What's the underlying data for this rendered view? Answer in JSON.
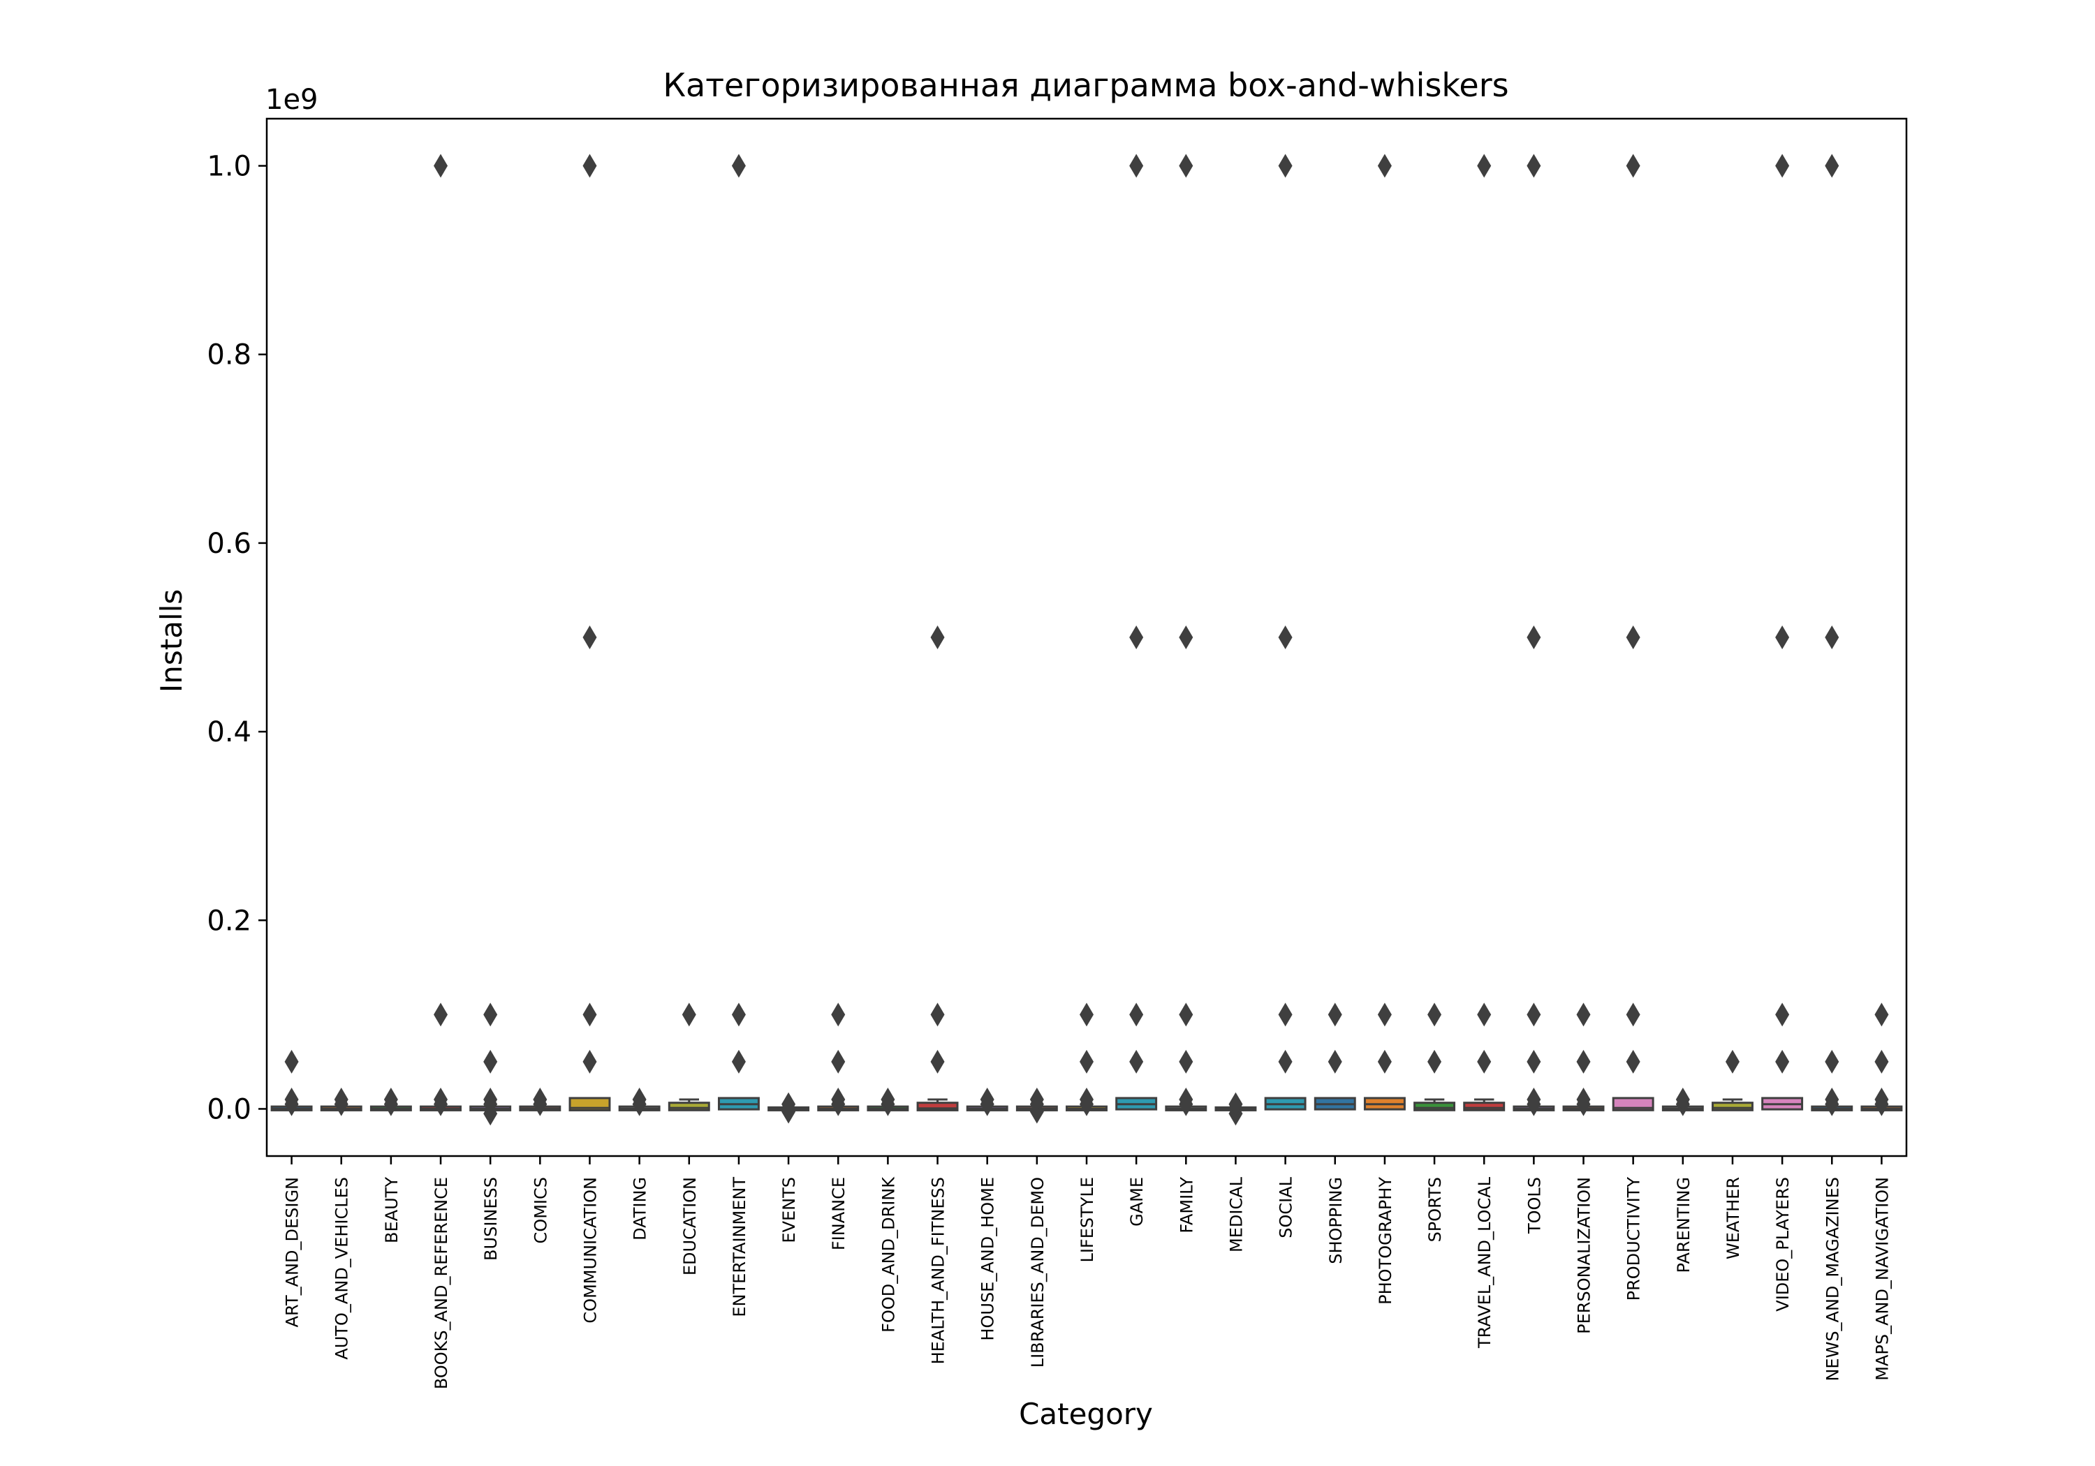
{
  "chart_data": {
    "type": "box",
    "title": "Категоризированная диаграмма box-and-whiskers",
    "xlabel": "Category",
    "ylabel": "Installs",
    "y_offset_label": "1e9",
    "ylim": [
      -50000000,
      1050000000
    ],
    "y_ticks": [
      0,
      200000000,
      400000000,
      600000000,
      800000000,
      1000000000
    ],
    "y_tick_labels": [
      "0.0",
      "0.2",
      "0.4",
      "0.6",
      "0.8",
      "1.0"
    ],
    "grid": false,
    "legend": "none",
    "categories": [
      {
        "name": "ART_AND_DESIGN",
        "q1": 10000,
        "median": 100000,
        "q3": 1000000,
        "whisker_low": 0,
        "whisker_high": 1000000,
        "color": "#3274a1",
        "outliers": [
          10000000,
          5000000,
          50000000
        ]
      },
      {
        "name": "AUTO_AND_VEHICLES",
        "q1": 1000,
        "median": 100000,
        "q3": 1000000,
        "whisker_low": 0,
        "whisker_high": 1000000,
        "color": "#e1812c",
        "outliers": [
          5000000,
          10000000
        ]
      },
      {
        "name": "BEAUTY",
        "q1": 10000,
        "median": 50000,
        "q3": 1000000,
        "whisker_low": 0,
        "whisker_high": 1000000,
        "color": "#3a923a",
        "outliers": [
          5000000,
          10000000
        ]
      },
      {
        "name": "BOOKS_AND_REFERENCE",
        "q1": 1000,
        "median": 10000,
        "q3": 1000000,
        "whisker_low": 0,
        "whisker_high": 1000000,
        "color": "#c03d3e",
        "outliers": [
          5000000,
          10000000,
          100000000,
          1000000000
        ]
      },
      {
        "name": "BUSINESS",
        "q1": 1000,
        "median": 10000,
        "q3": 1000000,
        "whisker_low": 0,
        "whisker_high": 1000000,
        "color": "#9372b2",
        "outliers": [
          -5000000,
          5000000,
          10000000,
          50000000,
          100000000
        ]
      },
      {
        "name": "COMICS",
        "q1": 10000,
        "median": 100000,
        "q3": 1000000,
        "whisker_low": 0,
        "whisker_high": 1000000,
        "color": "#845b53",
        "outliers": [
          5000000,
          10000000
        ]
      },
      {
        "name": "COMMUNICATION",
        "q1": 10000,
        "median": 1000000,
        "q3": 10000000,
        "whisker_low": 0,
        "whisker_high": 10000000,
        "color": "#c8a32b",
        "outliers": [
          50000000,
          100000000,
          500000000,
          1000000000
        ]
      },
      {
        "name": "DATING",
        "q1": 10000,
        "median": 100000,
        "q3": 1000000,
        "whisker_low": 0,
        "whisker_high": 1000000,
        "color": "#7f7f7f",
        "outliers": [
          5000000,
          10000000
        ]
      },
      {
        "name": "EDUCATION",
        "q1": 100000,
        "median": 1000000,
        "q3": 5000000,
        "whisker_low": 0,
        "whisker_high": 10000000,
        "color": "#a9aa35",
        "outliers": [
          100000000
        ]
      },
      {
        "name": "ENTERTAINMENT",
        "q1": 1000000,
        "median": 5000000,
        "q3": 10000000,
        "whisker_low": 0,
        "whisker_high": 10000000,
        "color": "#2e9ab0",
        "outliers": [
          50000000,
          100000000,
          1000000000
        ]
      },
      {
        "name": "EVENTS",
        "q1": 1000,
        "median": 10000,
        "q3": 100000,
        "whisker_low": 0,
        "whisker_high": 100000,
        "color": "#3274a1",
        "outliers": [
          -3000000,
          1000000,
          5000000
        ]
      },
      {
        "name": "FINANCE",
        "q1": 1000,
        "median": 100000,
        "q3": 1000000,
        "whisker_low": 0,
        "whisker_high": 1000000,
        "color": "#e1812c",
        "outliers": [
          5000000,
          10000000,
          50000000,
          100000000
        ]
      },
      {
        "name": "FOOD_AND_DRINK",
        "q1": 10000,
        "median": 100000,
        "q3": 1000000,
        "whisker_low": 0,
        "whisker_high": 1000000,
        "color": "#3a923a",
        "outliers": [
          5000000,
          10000000
        ]
      },
      {
        "name": "HEALTH_AND_FITNESS",
        "q1": 10000,
        "median": 500000,
        "q3": 5000000,
        "whisker_low": 0,
        "whisker_high": 10000000,
        "color": "#c03d3e",
        "outliers": [
          50000000,
          100000000,
          500000000
        ]
      },
      {
        "name": "HOUSE_AND_HOME",
        "q1": 10000,
        "median": 100000,
        "q3": 1000000,
        "whisker_low": 0,
        "whisker_high": 1000000,
        "color": "#9372b2",
        "outliers": [
          5000000,
          10000000
        ]
      },
      {
        "name": "LIBRARIES_AND_DEMO",
        "q1": 1000,
        "median": 10000,
        "q3": 1000000,
        "whisker_low": 0,
        "whisker_high": 1000000,
        "color": "#845b53",
        "outliers": [
          -3000000,
          5000000,
          10000000
        ]
      },
      {
        "name": "LIFESTYLE",
        "q1": 1000,
        "median": 10000,
        "q3": 1000000,
        "whisker_low": 0,
        "whisker_high": 1000000,
        "color": "#c8a32b",
        "outliers": [
          5000000,
          10000000,
          50000000,
          100000000
        ]
      },
      {
        "name": "GAME",
        "q1": 1000000,
        "median": 5000000,
        "q3": 10000000,
        "whisker_low": 0,
        "whisker_high": 10000000,
        "color": "#2e9ab0",
        "outliers": [
          50000000,
          100000000,
          500000000,
          1000000000
        ]
      },
      {
        "name": "FAMILY",
        "q1": 1000,
        "median": 100000,
        "q3": 1000000,
        "whisker_low": 0,
        "whisker_high": 1000000,
        "color": "#7f7f7f",
        "outliers": [
          5000000,
          10000000,
          50000000,
          100000000,
          500000000,
          1000000000
        ]
      },
      {
        "name": "MEDICAL",
        "q1": 100,
        "median": 1000,
        "q3": 100000,
        "whisker_low": 0,
        "whisker_high": 100000,
        "color": "#a9aa35",
        "outliers": [
          -5000000,
          1000000,
          5000000
        ]
      },
      {
        "name": "SOCIAL",
        "q1": 1000000,
        "median": 5000000,
        "q3": 10000000,
        "whisker_low": 0,
        "whisker_high": 10000000,
        "color": "#2e9ab0",
        "outliers": [
          50000000,
          100000000,
          500000000,
          1000000000
        ]
      },
      {
        "name": "SHOPPING",
        "q1": 1000000,
        "median": 5000000,
        "q3": 10000000,
        "whisker_low": 0,
        "whisker_high": 10000000,
        "color": "#3274a1",
        "outliers": [
          50000000,
          100000000
        ]
      },
      {
        "name": "PHOTOGRAPHY",
        "q1": 1000000,
        "median": 5000000,
        "q3": 10000000,
        "whisker_low": 0,
        "whisker_high": 10000000,
        "color": "#e1812c",
        "outliers": [
          50000000,
          100000000,
          1000000000
        ]
      },
      {
        "name": "SPORTS",
        "q1": 100000,
        "median": 1000000,
        "q3": 5000000,
        "whisker_low": 0,
        "whisker_high": 10000000,
        "color": "#3a923a",
        "outliers": [
          50000000,
          100000000
        ]
      },
      {
        "name": "TRAVEL_AND_LOCAL",
        "q1": 100000,
        "median": 1000000,
        "q3": 5000000,
        "whisker_low": 0,
        "whisker_high": 10000000,
        "color": "#c03d3e",
        "outliers": [
          50000000,
          100000000,
          1000000000
        ]
      },
      {
        "name": "TOOLS",
        "q1": 10000,
        "median": 100000,
        "q3": 1000000,
        "whisker_low": 0,
        "whisker_high": 1000000,
        "color": "#9372b2",
        "outliers": [
          5000000,
          10000000,
          50000000,
          100000000,
          500000000,
          1000000000
        ]
      },
      {
        "name": "PERSONALIZATION",
        "q1": 10000,
        "median": 100000,
        "q3": 1000000,
        "whisker_low": 0,
        "whisker_high": 1000000,
        "color": "#845b53",
        "outliers": [
          5000000,
          10000000,
          50000000,
          100000000
        ]
      },
      {
        "name": "PRODUCTIVITY",
        "q1": 100000,
        "median": 1000000,
        "q3": 10000000,
        "whisker_low": 0,
        "whisker_high": 10000000,
        "color": "#d684bd",
        "outliers": [
          50000000,
          100000000,
          500000000,
          1000000000
        ]
      },
      {
        "name": "PARENTING",
        "q1": 10000,
        "median": 100000,
        "q3": 1000000,
        "whisker_low": 0,
        "whisker_high": 1000000,
        "color": "#7f7f7f",
        "outliers": [
          5000000,
          10000000
        ]
      },
      {
        "name": "WEATHER",
        "q1": 100000,
        "median": 1000000,
        "q3": 5000000,
        "whisker_low": 0,
        "whisker_high": 10000000,
        "color": "#a9aa35",
        "outliers": [
          50000000
        ]
      },
      {
        "name": "VIDEO_PLAYERS",
        "q1": 1000000,
        "median": 5000000,
        "q3": 10000000,
        "whisker_low": 0,
        "whisker_high": 10000000,
        "color": "#d684bd",
        "outliers": [
          50000000,
          100000000,
          500000000,
          1000000000
        ]
      },
      {
        "name": "NEWS_AND_MAGAZINES",
        "q1": 10000,
        "median": 100000,
        "q3": 1000000,
        "whisker_low": 0,
        "whisker_high": 1000000,
        "color": "#3274a1",
        "outliers": [
          5000000,
          10000000,
          50000000,
          500000000,
          1000000000
        ]
      },
      {
        "name": "MAPS_AND_NAVIGATION",
        "q1": 10000,
        "median": 100000,
        "q3": 1000000,
        "whisker_low": 0,
        "whisker_high": 1000000,
        "color": "#e1812c",
        "outliers": [
          5000000,
          10000000,
          50000000,
          100000000
        ]
      }
    ]
  }
}
